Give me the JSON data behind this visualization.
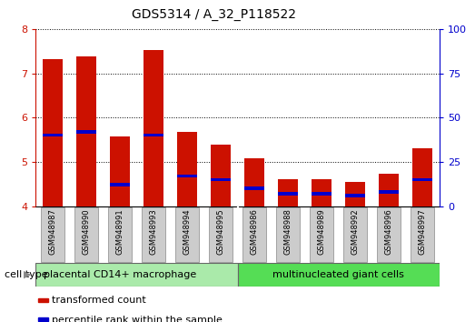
{
  "title": "GDS5314 / A_32_P118522",
  "samples": [
    "GSM948987",
    "GSM948990",
    "GSM948991",
    "GSM948993",
    "GSM948994",
    "GSM948995",
    "GSM948986",
    "GSM948988",
    "GSM948989",
    "GSM948992",
    "GSM948996",
    "GSM948997"
  ],
  "transformed_count": [
    7.32,
    7.38,
    5.57,
    7.52,
    5.68,
    5.38,
    5.07,
    4.6,
    4.6,
    4.55,
    4.73,
    5.3
  ],
  "percentile_rank": [
    40,
    42,
    12,
    40,
    17,
    15,
    10,
    7,
    7,
    6,
    8,
    15
  ],
  "ylim_left": [
    4,
    8
  ],
  "ylim_right": [
    0,
    100
  ],
  "yticks_left": [
    4,
    5,
    6,
    7,
    8
  ],
  "yticks_right": [
    0,
    25,
    50,
    75,
    100
  ],
  "groups": [
    {
      "label": "placental CD14+ macrophage",
      "count": 6,
      "color": "#aaeaaa"
    },
    {
      "label": "multinucleated giant cells",
      "count": 6,
      "color": "#55dd55"
    }
  ],
  "bar_color": "#cc1100",
  "marker_color": "#0000cc",
  "bar_width": 0.6,
  "legend": [
    {
      "label": "transformed count",
      "color": "#cc1100"
    },
    {
      "label": "percentile rank within the sample",
      "color": "#0000cc"
    }
  ],
  "tick_label_color_left": "#cc1100",
  "tick_label_color_right": "#0000cc",
  "background_xtick": "#cccccc"
}
